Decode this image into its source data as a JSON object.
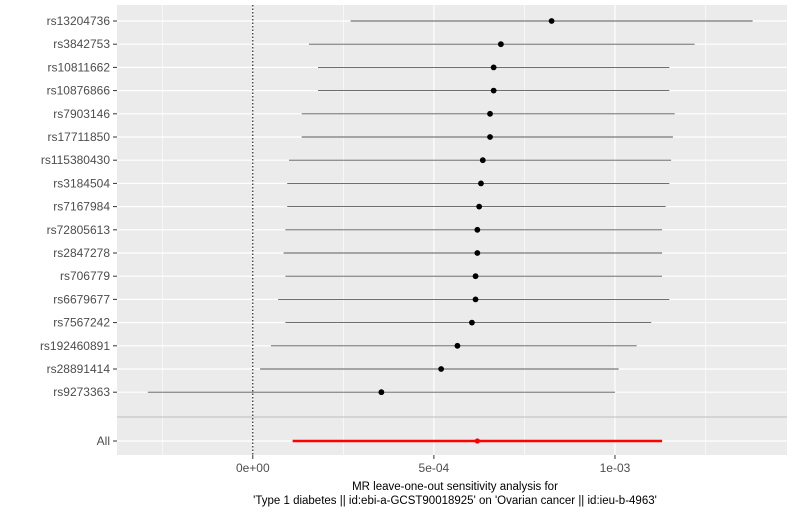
{
  "chart_data": {
    "type": "scatter",
    "subtype": "forest-plot",
    "title": "",
    "xlabel_lines": [
      "MR leave-one-out sensitivity analysis for",
      "'Type 1 diabetes || id:ebi-a-GCST90018925' on 'Ovarian cancer || id:ieu-b-4963'"
    ],
    "ylabel": "",
    "xlim": [
      -0.000375,
      0.001475
    ],
    "x_ticks": [
      {
        "value": 0,
        "label": "0e+00"
      },
      {
        "value": 0.0005,
        "label": "5e-04"
      },
      {
        "value": 0.001,
        "label": "1e-03"
      }
    ],
    "reference_line_x": 0,
    "grid": true,
    "legend": "none",
    "colors": {
      "panel_background": "#ebebeb",
      "gridline": "#ffffff",
      "point": "#000000",
      "ci_line": "#595959",
      "overall": "#ff0000",
      "reference_line": "#000000",
      "separator": "#bdbdbd"
    },
    "snps": [
      {
        "label": "rs13204736",
        "estimate": 0.000825,
        "lower": 0.00027,
        "upper": 0.00138
      },
      {
        "label": "rs3842753",
        "estimate": 0.000685,
        "lower": 0.000155,
        "upper": 0.00122
      },
      {
        "label": "rs10811662",
        "estimate": 0.000665,
        "lower": 0.00018,
        "upper": 0.00115
      },
      {
        "label": "rs10876866",
        "estimate": 0.000665,
        "lower": 0.00018,
        "upper": 0.00115
      },
      {
        "label": "rs7903146",
        "estimate": 0.000655,
        "lower": 0.000135,
        "upper": 0.001165
      },
      {
        "label": "rs17711850",
        "estimate": 0.000655,
        "lower": 0.000135,
        "upper": 0.00116
      },
      {
        "label": "rs115380430",
        "estimate": 0.000635,
        "lower": 0.0001,
        "upper": 0.001155
      },
      {
        "label": "rs3184504",
        "estimate": 0.00063,
        "lower": 9.5e-05,
        "upper": 0.00115
      },
      {
        "label": "rs7167984",
        "estimate": 0.000625,
        "lower": 9.5e-05,
        "upper": 0.00114
      },
      {
        "label": "rs72805613",
        "estimate": 0.00062,
        "lower": 9e-05,
        "upper": 0.00113
      },
      {
        "label": "rs2847278",
        "estimate": 0.00062,
        "lower": 8.5e-05,
        "upper": 0.00113
      },
      {
        "label": "rs706779",
        "estimate": 0.000615,
        "lower": 9e-05,
        "upper": 0.00113
      },
      {
        "label": "rs6679677",
        "estimate": 0.000615,
        "lower": 7e-05,
        "upper": 0.00115
      },
      {
        "label": "rs7567242",
        "estimate": 0.000605,
        "lower": 9e-05,
        "upper": 0.0011
      },
      {
        "label": "rs192460891",
        "estimate": 0.000565,
        "lower": 5e-05,
        "upper": 0.00106
      },
      {
        "label": "rs28891414",
        "estimate": 0.00052,
        "lower": 2e-05,
        "upper": 0.00101
      },
      {
        "label": "rs9273363",
        "estimate": 0.000355,
        "lower": -0.00029,
        "upper": 0.001
      }
    ],
    "overall": {
      "label": "All",
      "estimate": 0.00062,
      "lower": 0.00011,
      "upper": 0.00113
    }
  }
}
